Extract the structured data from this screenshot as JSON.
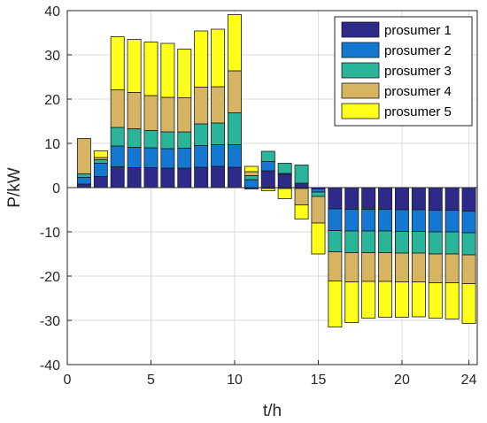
{
  "chart_data": {
    "type": "bar",
    "stacked": true,
    "stack_mode": "positive-up negative-down",
    "xlabel": "t/h",
    "ylabel": "P/kW",
    "xlim": [
      0,
      24.5
    ],
    "ylim": [
      -40,
      40
    ],
    "xticks": [
      0,
      5,
      10,
      15,
      20,
      24
    ],
    "yticks": [
      -40,
      -30,
      -20,
      -10,
      0,
      10,
      20,
      30,
      40
    ],
    "grid": true,
    "legend_position": "top-right",
    "x": [
      1,
      2,
      3,
      4,
      5,
      6,
      7,
      8,
      9,
      10,
      11,
      12,
      13,
      14,
      15,
      16,
      17,
      18,
      19,
      20,
      21,
      22,
      23,
      24
    ],
    "series": [
      {
        "name": "prosumer 1",
        "color": "#2e2a8a",
        "values": [
          0.8,
          2.5,
          4.7,
          4.5,
          4.5,
          4.4,
          4.4,
          4.6,
          4.8,
          4.6,
          -0.3,
          3.8,
          3.0,
          1.0,
          -0.3,
          -4.8,
          -4.9,
          -4.9,
          -4.9,
          -5.0,
          -5.0,
          -5.1,
          -5.1,
          -5.3
        ]
      },
      {
        "name": "prosumer 2",
        "color": "#1478d2",
        "values": [
          1.5,
          3.0,
          4.7,
          4.6,
          4.5,
          4.4,
          4.5,
          4.9,
          4.9,
          5.1,
          1.8,
          2.1,
          0.2,
          -0.2,
          -0.7,
          -4.9,
          -4.9,
          -4.9,
          -4.9,
          -4.9,
          -4.9,
          -4.9,
          -4.9,
          -4.9
        ]
      },
      {
        "name": "prosumer 3",
        "color": "#2ab59a",
        "values": [
          0.8,
          0.8,
          4.2,
          4.2,
          3.9,
          3.8,
          3.7,
          4.9,
          4.9,
          7.2,
          0.9,
          2.3,
          2.3,
          4.1,
          -1.0,
          -4.8,
          -4.9,
          -4.9,
          -4.9,
          -4.9,
          -4.9,
          -5.0,
          -5.0,
          -5.0
        ]
      },
      {
        "name": "prosumer 4",
        "color": "#d6b461",
        "values": [
          8.0,
          0.5,
          8.5,
          8.2,
          7.9,
          7.8,
          7.7,
          8.3,
          8.2,
          9.5,
          0.9,
          -0.2,
          -0.2,
          -3.7,
          -6.0,
          -6.6,
          -6.6,
          -6.5,
          -6.5,
          -6.5,
          -6.5,
          -6.5,
          -6.5,
          -6.5
        ]
      },
      {
        "name": "prosumer 5",
        "color": "#ffff1a",
        "values": [
          0.0,
          1.5,
          12.0,
          12.0,
          12.1,
          12.2,
          11.0,
          12.7,
          13.0,
          12.7,
          1.2,
          -0.5,
          -2.3,
          -3.2,
          -7.0,
          -10.4,
          -9.2,
          -8.3,
          -8.1,
          -8.0,
          -7.9,
          -8.0,
          -8.2,
          -9.0
        ]
      }
    ]
  }
}
